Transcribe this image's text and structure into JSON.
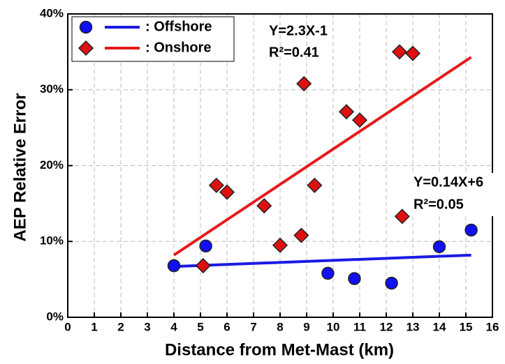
{
  "chart_data": {
    "type": "scatter",
    "x_label": "Distance from Met-Mast (km)",
    "y_label": "AEP Relative Error",
    "xlim": [
      0,
      16
    ],
    "ylim": [
      0,
      40
    ],
    "xticks": [
      0,
      1,
      2,
      3,
      4,
      5,
      6,
      7,
      8,
      9,
      10,
      11,
      12,
      13,
      14,
      15,
      16
    ],
    "yticks": [
      {
        "value": 0,
        "label": "0%"
      },
      {
        "value": 10,
        "label": "10%"
      },
      {
        "value": 20,
        "label": "20%"
      },
      {
        "value": 30,
        "label": "30%"
      },
      {
        "value": 40,
        "label": "40%"
      }
    ],
    "grid": true,
    "legend": "upper left",
    "series": [
      {
        "name": ": Offshore",
        "color": "#1010f0",
        "marker": "circle",
        "line_color": "#1a1ae6",
        "x": [
          4,
          5.2,
          9.8,
          10.8,
          12.2,
          14,
          15.2
        ],
        "values": [
          6.8,
          9.4,
          5.8,
          5.1,
          4.5,
          9.3,
          11.5
        ],
        "fit": {
          "x": [
            4,
            15.2
          ],
          "y": [
            6.7,
            8.2
          ]
        }
      },
      {
        "name": ": Onshore",
        "color": "#e01010",
        "marker": "diamond",
        "line_color": "#e61a1a",
        "x": [
          5.1,
          5.6,
          6,
          7.4,
          8,
          8.8,
          8.9,
          9.3,
          10.5,
          11,
          12.5,
          13,
          12.6
        ],
        "values": [
          6.8,
          17.4,
          16.5,
          14.7,
          9.5,
          10.8,
          30.8,
          17.4,
          27.1,
          26,
          35,
          34.8,
          13.3
        ],
        "fit": {
          "x": [
            4,
            15.2
          ],
          "y": [
            8.2,
            34.3
          ]
        }
      }
    ],
    "annotations": [
      "Y=2.3X-1",
      "R²=0.41",
      "Y=0.14X+6",
      "R²=0.05"
    ]
  }
}
